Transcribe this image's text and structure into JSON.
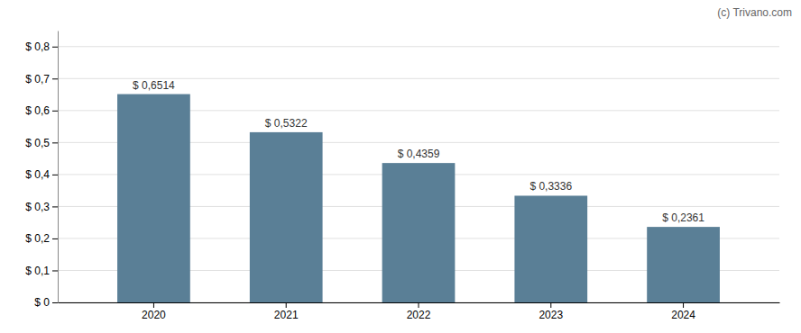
{
  "chart_data": {
    "type": "bar",
    "categories": [
      "2020",
      "2021",
      "2022",
      "2023",
      "2024"
    ],
    "values": [
      0.6514,
      0.5322,
      0.4359,
      0.3336,
      0.2361
    ],
    "value_labels": [
      "$ 0,6514",
      "$ 0,5322",
      "$ 0,4359",
      "$ 0,3336",
      "$ 0,2361"
    ],
    "data_labels": true,
    "color": "#5a7f96",
    "ylim": [
      0,
      0.85
    ],
    "yticks": [
      {
        "value": 0,
        "label": "$ 0"
      },
      {
        "value": 0.1,
        "label": "$ 0,1"
      },
      {
        "value": 0.2,
        "label": "$ 0,2"
      },
      {
        "value": 0.3,
        "label": "$ 0,3"
      },
      {
        "value": 0.4,
        "label": "$ 0,4"
      },
      {
        "value": 0.5,
        "label": "$ 0,5"
      },
      {
        "value": 0.6,
        "label": "$ 0,6"
      },
      {
        "value": 0.7,
        "label": "$ 0,7"
      },
      {
        "value": 0.8,
        "label": "$ 0,8"
      }
    ],
    "grid": true,
    "annotations": [
      "(c) Trivano.com"
    ]
  }
}
